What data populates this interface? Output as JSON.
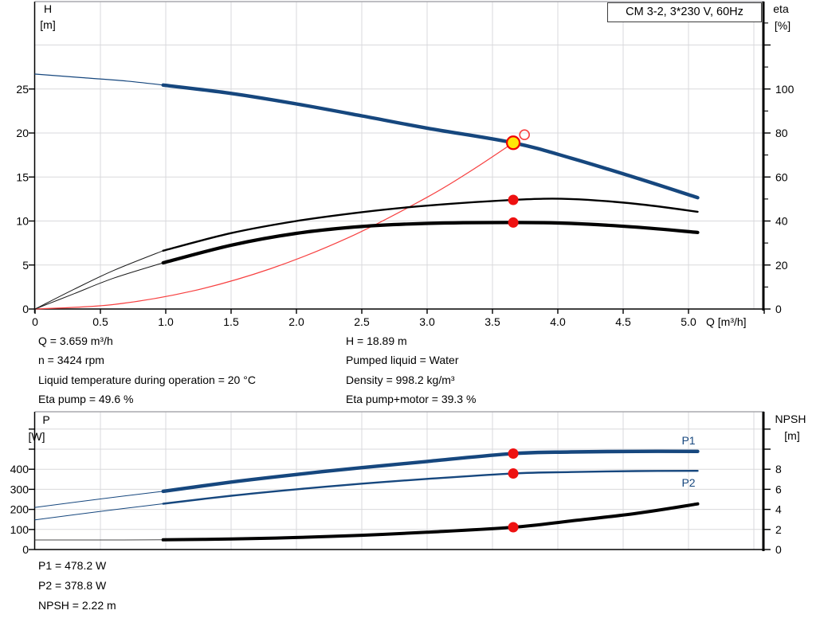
{
  "header": {
    "title_box": "CM 3-2, 3*230 V, 60Hz"
  },
  "axis_titles": {
    "top_left_title": "H",
    "top_left_unit": "[m]",
    "top_right_title": "eta",
    "top_right_unit": "[%]",
    "x_title": "Q [m³/h]",
    "bottom_left_title": "P",
    "bottom_left_unit": "[W]",
    "bottom_right_title": "NPSH",
    "bottom_right_unit": "[m]"
  },
  "curve_labels": {
    "p1": "P1",
    "p2": "P2"
  },
  "info_top_left": [
    "Q = 3.659 m³/h",
    "n = 3424 rpm",
    "Liquid temperature during operation = 20 °C",
    "Eta pump = 49.6 %"
  ],
  "info_top_right": [
    "H = 18.89 m",
    "Pumped liquid = Water",
    "Density = 998.2 kg/m³",
    "Eta pump+motor = 39.3 %"
  ],
  "info_bottom": [
    "P1 = 478.2 W",
    "P2 = 378.8 W",
    "NPSH = 2.22 m"
  ],
  "colors": {
    "curve_blue": "#16477e",
    "curve_black": "#000000",
    "curve_red": "#f74040",
    "dot_red": "#ee1111",
    "duty_yellow": "#ffe608",
    "grid": "#d9d9dc",
    "frame": "#a9a9ad"
  },
  "chart_data": [
    {
      "type": "line",
      "title": "CM 3-2, 3*230 V, 60Hz — QH and efficiency curves",
      "xlabel": "Q [m³/h]",
      "x_range": [
        0,
        5.58
      ],
      "x_grid": [
        0.5,
        1.0,
        1.5,
        2.0,
        2.5,
        3.0,
        3.5,
        4.0,
        4.5,
        5.0,
        5.5
      ],
      "x_ticks": [
        {
          "v": 0,
          "label": "0"
        },
        {
          "v": 0.5,
          "label": "0.5"
        },
        {
          "v": 1.0,
          "label": "1.0"
        },
        {
          "v": 1.5,
          "label": "1.5"
        },
        {
          "v": 2.0,
          "label": "2.0"
        },
        {
          "v": 2.5,
          "label": "2.5"
        },
        {
          "v": 3.0,
          "label": "3.0"
        },
        {
          "v": 3.5,
          "label": "3.5"
        },
        {
          "v": 4.0,
          "label": "4.0"
        },
        {
          "v": 4.5,
          "label": "4.5"
        },
        {
          "v": 5.0,
          "label": "5.0"
        }
      ],
      "left_axis": {
        "ylabel": "H [m]",
        "range": [
          0,
          35
        ],
        "grid": [
          5,
          10,
          15,
          20,
          25,
          30
        ],
        "ticks": [
          {
            "v": 0,
            "label": "0"
          },
          {
            "v": 5,
            "label": "5"
          },
          {
            "v": 10,
            "label": "10"
          },
          {
            "v": 15,
            "label": "15"
          },
          {
            "v": 20,
            "label": "20"
          },
          {
            "v": 25,
            "label": "25"
          }
        ]
      },
      "right_axis": {
        "ylabel": "eta [%]",
        "range": [
          0,
          140
        ],
        "ticks": [
          {
            "v": 0,
            "label": "0"
          },
          {
            "v": 20,
            "label": "20"
          },
          {
            "v": 40,
            "label": "40"
          },
          {
            "v": 60,
            "label": "60"
          },
          {
            "v": 80,
            "label": "80"
          },
          {
            "v": 100,
            "label": "100"
          },
          {
            "v": 120,
            "label": ""
          }
        ],
        "minor_ticks": [
          10,
          30,
          50,
          70,
          90,
          110,
          130
        ]
      },
      "series": [
        {
          "name": "system-curve",
          "axis": "H",
          "color": "#f74040",
          "width": 1.2,
          "points": [
            [
              0,
              0
            ],
            [
              0.6,
              0.51
            ],
            [
              1.2,
              2.03
            ],
            [
              1.8,
              4.57
            ],
            [
              2.4,
              8.13
            ],
            [
              3.0,
              12.7
            ],
            [
              3.35,
              15.84
            ],
            [
              3.659,
              18.89
            ]
          ]
        },
        {
          "name": "eta-pump-curve-thin",
          "axis": "eta",
          "color": "#1a1a1a",
          "width": 1,
          "points": [
            [
              0,
              0
            ],
            [
              0.3,
              9
            ],
            [
              0.6,
              17.5
            ],
            [
              0.98,
              26.5
            ]
          ]
        },
        {
          "name": "eta-pump-motor-curve-thin",
          "axis": "eta",
          "color": "#1a1a1a",
          "width": 1,
          "points": [
            [
              0,
              0
            ],
            [
              0.3,
              7
            ],
            [
              0.6,
              14
            ],
            [
              0.98,
              21
            ]
          ]
        },
        {
          "name": "eta-pump-curve",
          "axis": "eta",
          "color": "#000000",
          "width": 2.4,
          "points": [
            [
              0.98,
              26.5
            ],
            [
              1.5,
              34.5
            ],
            [
              2.0,
              40
            ],
            [
              2.5,
              44
            ],
            [
              3.0,
              47
            ],
            [
              3.659,
              49.6
            ],
            [
              4.1,
              50
            ],
            [
              4.6,
              47.8
            ],
            [
              5.07,
              44.2
            ]
          ]
        },
        {
          "name": "eta-pump-motor-curve",
          "axis": "eta",
          "color": "#000000",
          "width": 4.2,
          "points": [
            [
              0.98,
              21
            ],
            [
              1.5,
              29
            ],
            [
              2.0,
              34.4
            ],
            [
              2.5,
              37.5
            ],
            [
              3.0,
              38.9
            ],
            [
              3.659,
              39.3
            ],
            [
              4.1,
              38.9
            ],
            [
              4.6,
              37.2
            ],
            [
              5.07,
              34.8
            ]
          ]
        },
        {
          "name": "head-curve-thin",
          "axis": "H",
          "color": "#16477e",
          "width": 1.2,
          "points": [
            [
              0,
              26.7
            ],
            [
              0.35,
              26.3
            ],
            [
              0.7,
              25.9
            ],
            [
              0.98,
              25.45
            ]
          ]
        },
        {
          "name": "head-curve",
          "axis": "H",
          "color": "#16477e",
          "width": 4.4,
          "points": [
            [
              0.98,
              25.45
            ],
            [
              1.5,
              24.5
            ],
            [
              2.0,
              23.3
            ],
            [
              2.5,
              21.95
            ],
            [
              3.0,
              20.55
            ],
            [
              3.659,
              18.89
            ],
            [
              4.1,
              17.15
            ],
            [
              4.6,
              14.9
            ],
            [
              5.07,
              12.65
            ]
          ]
        }
      ],
      "markers": [
        {
          "kind": "requested-point",
          "axis": "H",
          "q": 3.745,
          "v": 19.8
        },
        {
          "kind": "duty-point",
          "axis": "H",
          "q": 3.659,
          "v": 18.89
        },
        {
          "kind": "dot",
          "axis": "eta",
          "q": 3.659,
          "v": 49.6
        },
        {
          "kind": "dot",
          "axis": "eta",
          "q": 3.659,
          "v": 39.3
        }
      ]
    },
    {
      "type": "line",
      "title": "Power and NPSH curves",
      "xlabel": "Q [m³/h]",
      "x_range": [
        0,
        5.58
      ],
      "x_grid": [
        0.5,
        1.0,
        1.5,
        2.0,
        2.5,
        3.0,
        3.5,
        4.0,
        4.5,
        5.0,
        5.5
      ],
      "x_ticks": [],
      "left_axis": {
        "ylabel": "P [W]",
        "range": [
          0,
          686
        ],
        "grid": [
          100,
          200,
          300,
          400,
          500,
          600
        ],
        "ticks": [
          {
            "v": 0,
            "label": "0"
          },
          {
            "v": 100,
            "label": "100"
          },
          {
            "v": 200,
            "label": "200"
          },
          {
            "v": 300,
            "label": "300"
          },
          {
            "v": 400,
            "label": "400"
          },
          {
            "v": 500,
            "label": ""
          },
          {
            "v": 600,
            "label": ""
          }
        ]
      },
      "right_axis": {
        "ylabel": "NPSH [m]",
        "range": [
          0,
          13.7
        ],
        "ticks": [
          {
            "v": 0,
            "label": "0"
          },
          {
            "v": 2,
            "label": "2"
          },
          {
            "v": 4,
            "label": "4"
          },
          {
            "v": 6,
            "label": "6"
          },
          {
            "v": 8,
            "label": "8"
          },
          {
            "v": 10,
            "label": ""
          },
          {
            "v": 12,
            "label": ""
          }
        ],
        "minor_ticks": []
      },
      "series": [
        {
          "name": "npsh-curve-thin",
          "axis": "NPSH",
          "color": "#4a4a4a",
          "width": 1,
          "points": [
            [
              0,
              0.95
            ],
            [
              0.5,
              0.95
            ],
            [
              0.98,
              0.97
            ]
          ]
        },
        {
          "name": "p1-curve-thin",
          "axis": "P",
          "color": "#16477e",
          "width": 1,
          "points": [
            [
              0,
              210
            ],
            [
              0.5,
              252
            ],
            [
              0.98,
              290
            ]
          ]
        },
        {
          "name": "p2-curve-thin",
          "axis": "P",
          "color": "#16477e",
          "width": 1,
          "points": [
            [
              0,
              148
            ],
            [
              0.5,
              190
            ],
            [
              0.98,
              228
            ]
          ]
        },
        {
          "name": "npsh-curve",
          "axis": "NPSH",
          "color": "#000000",
          "width": 4,
          "points": [
            [
              0.98,
              0.97
            ],
            [
              1.5,
              1.05
            ],
            [
              2.0,
              1.2
            ],
            [
              2.5,
              1.42
            ],
            [
              3.0,
              1.72
            ],
            [
              3.659,
              2.22
            ],
            [
              4.1,
              2.85
            ],
            [
              4.6,
              3.6
            ],
            [
              5.07,
              4.55
            ]
          ]
        },
        {
          "name": "p2-curve",
          "axis": "P",
          "color": "#16477e",
          "width": 2.4,
          "points": [
            [
              0.98,
              228
            ],
            [
              1.5,
              268
            ],
            [
              2.0,
              300
            ],
            [
              2.5,
              328
            ],
            [
              3.0,
              352
            ],
            [
              3.659,
              378.8
            ],
            [
              4.1,
              386
            ],
            [
              4.6,
              391
            ],
            [
              5.07,
              392
            ]
          ]
        },
        {
          "name": "p1-curve",
          "axis": "P",
          "color": "#16477e",
          "width": 4.4,
          "points": [
            [
              0.98,
              290
            ],
            [
              1.5,
              336
            ],
            [
              2.0,
              374
            ],
            [
              2.5,
              408
            ],
            [
              3.0,
              439
            ],
            [
              3.659,
              478.2
            ],
            [
              4.1,
              486
            ],
            [
              4.6,
              489
            ],
            [
              5.07,
              489
            ]
          ]
        }
      ],
      "markers": [
        {
          "kind": "dot",
          "axis": "P",
          "q": 3.659,
          "v": 478.2
        },
        {
          "kind": "dot",
          "axis": "P",
          "q": 3.659,
          "v": 378.8
        },
        {
          "kind": "dot",
          "axis": "NPSH",
          "q": 3.659,
          "v": 2.22
        }
      ]
    }
  ]
}
